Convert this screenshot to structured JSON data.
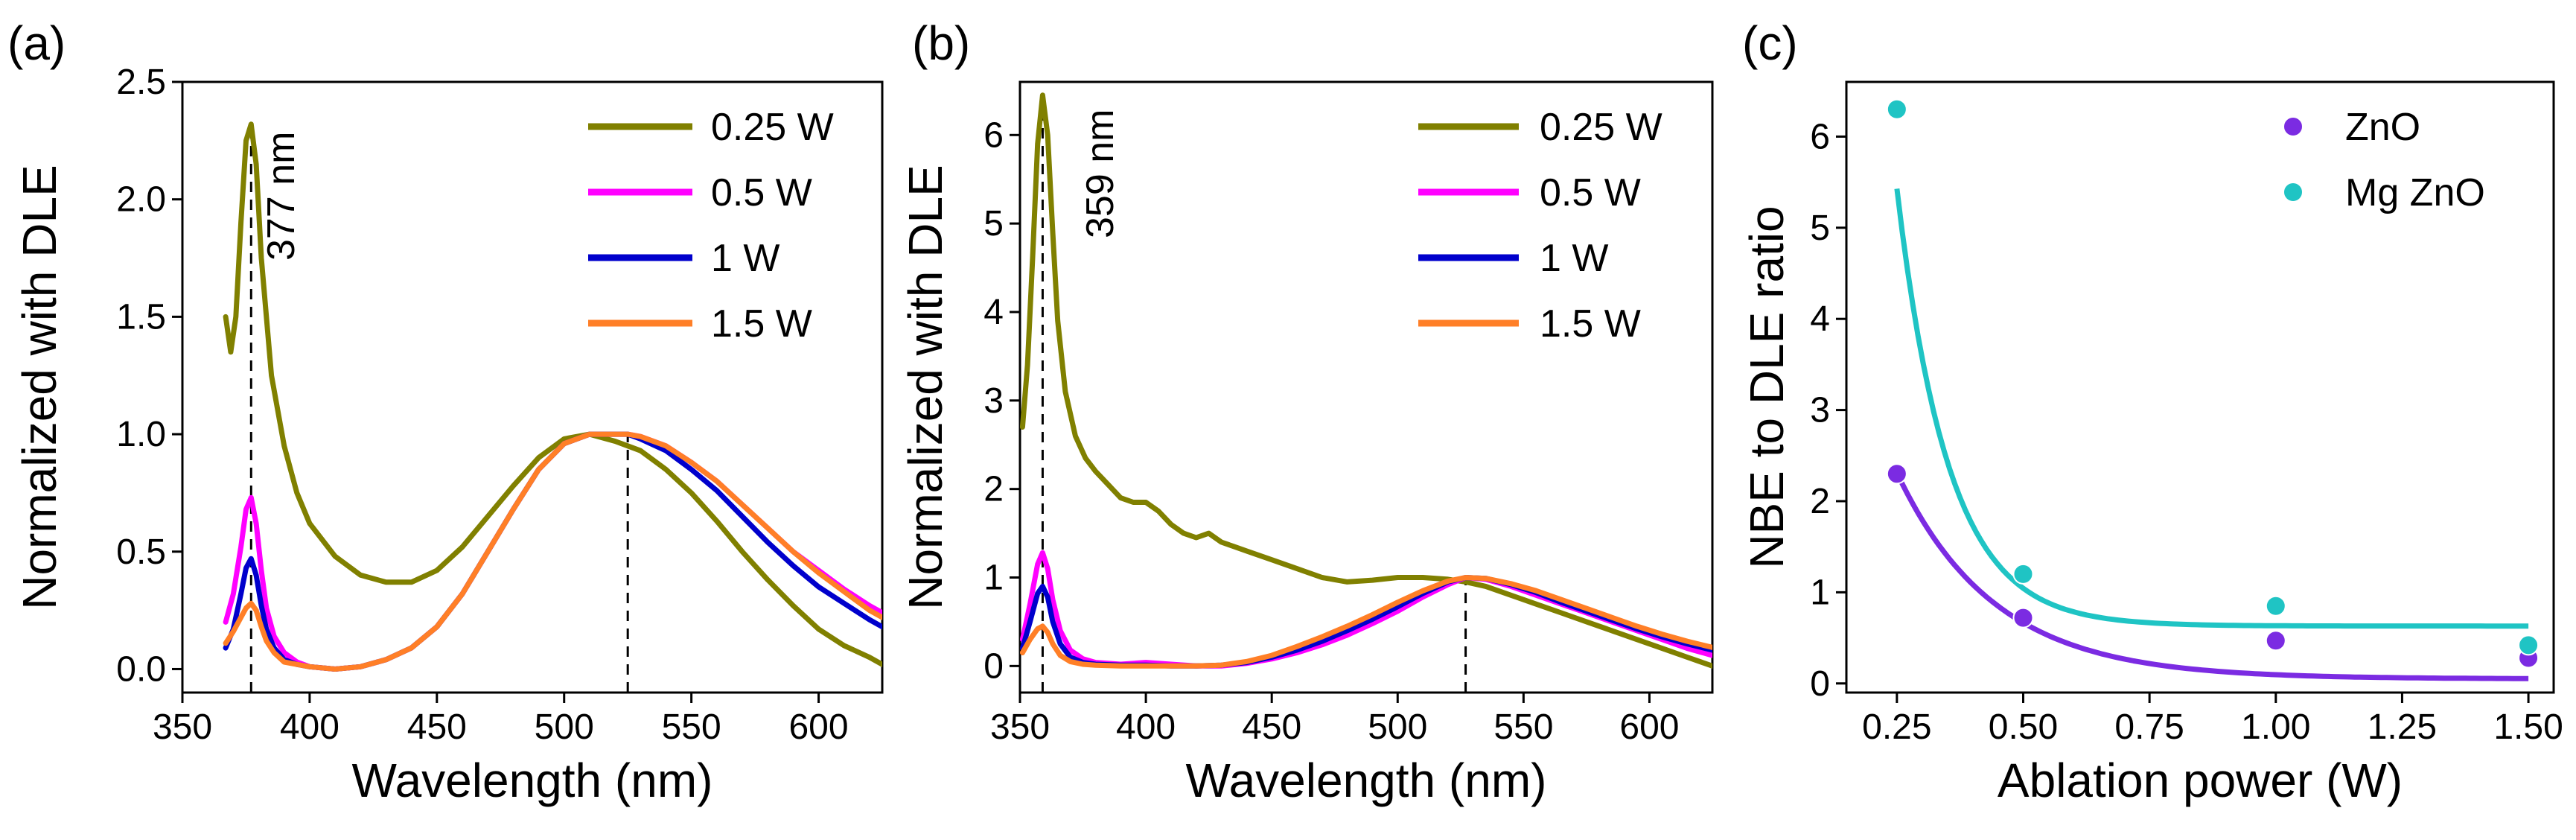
{
  "chart_data": [
    {
      "panel": "(a)",
      "type": "line",
      "xlabel": "Wavelength (nm)",
      "ylabel": "Normalized with DLE",
      "xlim": [
        350,
        625
      ],
      "ylim": [
        -0.1,
        2.5
      ],
      "xticks": [
        350,
        400,
        450,
        500,
        550,
        600
      ],
      "yticks": [
        0.0,
        0.5,
        1.0,
        1.5,
        2.0,
        2.5
      ],
      "ytick_labels": [
        "0.0",
        "0.5",
        "1.0",
        "1.5",
        "2.0",
        "2.5"
      ],
      "annotation": "377 nm",
      "peak_markers": [
        377,
        525
      ],
      "legend_position": "top-right",
      "series": [
        {
          "name": "0.25 W",
          "color": "#808000",
          "x": [
            367,
            369,
            371,
            373,
            375,
            377,
            379,
            381,
            385,
            390,
            395,
            400,
            410,
            420,
            430,
            440,
            450,
            460,
            470,
            480,
            490,
            500,
            510,
            520,
            525,
            530,
            540,
            550,
            560,
            570,
            580,
            590,
            600,
            610,
            620,
            625
          ],
          "y": [
            1.5,
            1.35,
            1.5,
            1.9,
            2.25,
            2.32,
            2.15,
            1.75,
            1.25,
            0.95,
            0.75,
            0.62,
            0.48,
            0.4,
            0.37,
            0.37,
            0.42,
            0.52,
            0.65,
            0.78,
            0.9,
            0.98,
            1.0,
            0.97,
            0.95,
            0.93,
            0.85,
            0.75,
            0.63,
            0.5,
            0.38,
            0.27,
            0.17,
            0.1,
            0.05,
            0.02
          ]
        },
        {
          "name": "0.5 W",
          "color": "#ff00ff",
          "x": [
            367,
            370,
            373,
            375,
            377,
            379,
            381,
            383,
            386,
            390,
            395,
            400,
            410,
            420,
            430,
            440,
            450,
            460,
            470,
            480,
            490,
            500,
            510,
            520,
            525,
            530,
            540,
            550,
            560,
            570,
            580,
            590,
            600,
            610,
            620,
            625
          ],
          "y": [
            0.2,
            0.32,
            0.52,
            0.68,
            0.73,
            0.62,
            0.42,
            0.26,
            0.14,
            0.07,
            0.03,
            0.01,
            0.0,
            0.01,
            0.04,
            0.09,
            0.18,
            0.32,
            0.5,
            0.68,
            0.85,
            0.96,
            1.0,
            1.0,
            1.0,
            0.99,
            0.95,
            0.88,
            0.8,
            0.7,
            0.6,
            0.5,
            0.42,
            0.34,
            0.27,
            0.24
          ]
        },
        {
          "name": "1 W",
          "color": "#0000cc",
          "x": [
            367,
            370,
            373,
            375,
            377,
            379,
            381,
            383,
            386,
            390,
            395,
            400,
            410,
            420,
            430,
            440,
            450,
            460,
            470,
            480,
            490,
            500,
            510,
            520,
            525,
            530,
            540,
            550,
            560,
            570,
            580,
            590,
            600,
            610,
            620,
            625
          ],
          "y": [
            0.09,
            0.17,
            0.32,
            0.43,
            0.47,
            0.4,
            0.27,
            0.17,
            0.09,
            0.04,
            0.02,
            0.01,
            0.0,
            0.01,
            0.04,
            0.09,
            0.18,
            0.32,
            0.5,
            0.68,
            0.85,
            0.96,
            1.0,
            1.0,
            1.0,
            0.98,
            0.93,
            0.85,
            0.76,
            0.65,
            0.54,
            0.44,
            0.35,
            0.28,
            0.21,
            0.18
          ]
        },
        {
          "name": "1.5 W",
          "color": "#ff7f27",
          "x": [
            367,
            370,
            373,
            375,
            377,
            379,
            381,
            383,
            386,
            390,
            395,
            400,
            410,
            420,
            430,
            440,
            450,
            460,
            470,
            480,
            490,
            500,
            510,
            520,
            525,
            530,
            540,
            550,
            560,
            570,
            580,
            590,
            600,
            610,
            620,
            625
          ],
          "y": [
            0.11,
            0.16,
            0.22,
            0.26,
            0.28,
            0.25,
            0.18,
            0.12,
            0.07,
            0.03,
            0.02,
            0.01,
            0.0,
            0.01,
            0.04,
            0.09,
            0.18,
            0.32,
            0.5,
            0.68,
            0.85,
            0.96,
            1.0,
            1.0,
            1.0,
            0.99,
            0.95,
            0.88,
            0.8,
            0.7,
            0.6,
            0.5,
            0.41,
            0.33,
            0.25,
            0.22
          ]
        }
      ]
    },
    {
      "panel": "(b)",
      "type": "line",
      "xlabel": "Wavelength (nm)",
      "ylabel": "Normalized with DLE",
      "xlim": [
        350,
        625
      ],
      "ylim": [
        -0.3,
        6.6
      ],
      "xticks": [
        350,
        400,
        450,
        500,
        550,
        600
      ],
      "yticks": [
        0,
        1,
        2,
        3,
        4,
        5,
        6
      ],
      "ytick_labels": [
        "0",
        "1",
        "2",
        "3",
        "4",
        "5",
        "6"
      ],
      "annotation": "359 nm",
      "peak_markers": [
        359,
        527
      ],
      "legend_position": "top-right",
      "series": [
        {
          "name": "0.25 W",
          "color": "#808000",
          "x": [
            351,
            353,
            355,
            357,
            359,
            361,
            363,
            365,
            368,
            372,
            376,
            380,
            385,
            390,
            395,
            400,
            405,
            410,
            415,
            420,
            425,
            430,
            435,
            440,
            450,
            460,
            470,
            480,
            490,
            500,
            510,
            520,
            527,
            535,
            545,
            555,
            565,
            575,
            585,
            595,
            605,
            615,
            625
          ],
          "y": [
            2.7,
            3.4,
            4.6,
            5.9,
            6.45,
            6.0,
            4.9,
            3.9,
            3.1,
            2.6,
            2.35,
            2.2,
            2.05,
            1.9,
            1.85,
            1.85,
            1.75,
            1.6,
            1.5,
            1.45,
            1.5,
            1.4,
            1.35,
            1.3,
            1.2,
            1.1,
            1.0,
            0.95,
            0.97,
            1.0,
            1.0,
            0.98,
            0.95,
            0.9,
            0.8,
            0.7,
            0.6,
            0.5,
            0.4,
            0.3,
            0.2,
            0.1,
            0.0
          ]
        },
        {
          "name": "0.5 W",
          "color": "#ff00ff",
          "x": [
            351,
            354,
            357,
            359,
            361,
            363,
            366,
            370,
            375,
            380,
            390,
            400,
            410,
            420,
            430,
            440,
            450,
            460,
            470,
            480,
            490,
            500,
            510,
            520,
            527,
            535,
            545,
            555,
            565,
            575,
            585,
            595,
            605,
            615,
            625
          ],
          "y": [
            0.3,
            0.7,
            1.15,
            1.28,
            1.1,
            0.75,
            0.4,
            0.18,
            0.08,
            0.04,
            0.02,
            0.04,
            0.02,
            0.0,
            0.0,
            0.03,
            0.08,
            0.15,
            0.24,
            0.35,
            0.48,
            0.62,
            0.78,
            0.92,
            1.0,
            0.98,
            0.9,
            0.8,
            0.7,
            0.6,
            0.5,
            0.4,
            0.3,
            0.2,
            0.12
          ]
        },
        {
          "name": "1 W",
          "color": "#0000cc",
          "x": [
            351,
            354,
            357,
            359,
            361,
            363,
            366,
            370,
            375,
            380,
            390,
            400,
            410,
            420,
            430,
            440,
            450,
            460,
            470,
            480,
            490,
            500,
            510,
            520,
            527,
            535,
            545,
            555,
            565,
            575,
            585,
            595,
            605,
            615,
            625
          ],
          "y": [
            0.2,
            0.5,
            0.82,
            0.9,
            0.78,
            0.5,
            0.25,
            0.1,
            0.04,
            0.02,
            0.01,
            0.01,
            0.0,
            0.0,
            0.01,
            0.04,
            0.1,
            0.18,
            0.28,
            0.4,
            0.53,
            0.67,
            0.82,
            0.95,
            1.0,
            0.99,
            0.92,
            0.83,
            0.72,
            0.62,
            0.52,
            0.42,
            0.33,
            0.25,
            0.18
          ]
        },
        {
          "name": "1.5 W",
          "color": "#ff7f27",
          "x": [
            351,
            354,
            357,
            359,
            361,
            363,
            366,
            370,
            375,
            380,
            390,
            400,
            410,
            420,
            430,
            440,
            450,
            460,
            470,
            480,
            490,
            500,
            510,
            520,
            527,
            535,
            545,
            555,
            565,
            575,
            585,
            595,
            605,
            615,
            625
          ],
          "y": [
            0.15,
            0.3,
            0.42,
            0.45,
            0.38,
            0.25,
            0.12,
            0.05,
            0.02,
            0.01,
            0.0,
            0.0,
            0.0,
            0.0,
            0.01,
            0.05,
            0.12,
            0.22,
            0.33,
            0.45,
            0.58,
            0.72,
            0.85,
            0.96,
            1.0,
            0.99,
            0.93,
            0.85,
            0.75,
            0.65,
            0.55,
            0.45,
            0.36,
            0.28,
            0.21
          ]
        }
      ]
    },
    {
      "panel": "(c)",
      "type": "scatter",
      "xlabel": "Ablation power (W)",
      "ylabel": "NBE to DLE ratio",
      "xlim": [
        0.15,
        1.55
      ],
      "ylim": [
        -0.1,
        6.6
      ],
      "xticks": [
        0.25,
        0.5,
        0.75,
        1.0,
        1.25,
        1.5
      ],
      "xtick_labels": [
        "0.25",
        "0.50",
        "0.75",
        "1.00",
        "1.25",
        "1.50"
      ],
      "yticks": [
        0,
        1,
        2,
        3,
        4,
        5,
        6
      ],
      "ytick_labels": [
        "0",
        "1",
        "2",
        "3",
        "4",
        "5",
        "6"
      ],
      "legend_position": "top-right",
      "series": [
        {
          "name": "ZnO",
          "color": "#7b2be2",
          "x": [
            0.25,
            0.5,
            1.0,
            1.5
          ],
          "y": [
            2.3,
            0.72,
            0.47,
            0.28
          ],
          "fit": {
            "type": "exp-decay",
            "A": 8.3,
            "k": 5.2,
            "c": 0.05,
            "xmin": 0.25,
            "xmax": 1.5
          }
        },
        {
          "name": "Mg ZnO",
          "color": "#1fc4c4",
          "x": [
            0.25,
            0.5,
            1.0,
            1.5
          ],
          "y": [
            6.3,
            1.2,
            0.85,
            0.42
          ],
          "fit": {
            "type": "exp-decay",
            "A": 55.6,
            "k": 9.8,
            "c": 0.63,
            "xmin": 0.25,
            "xmax": 1.5
          }
        }
      ]
    }
  ]
}
